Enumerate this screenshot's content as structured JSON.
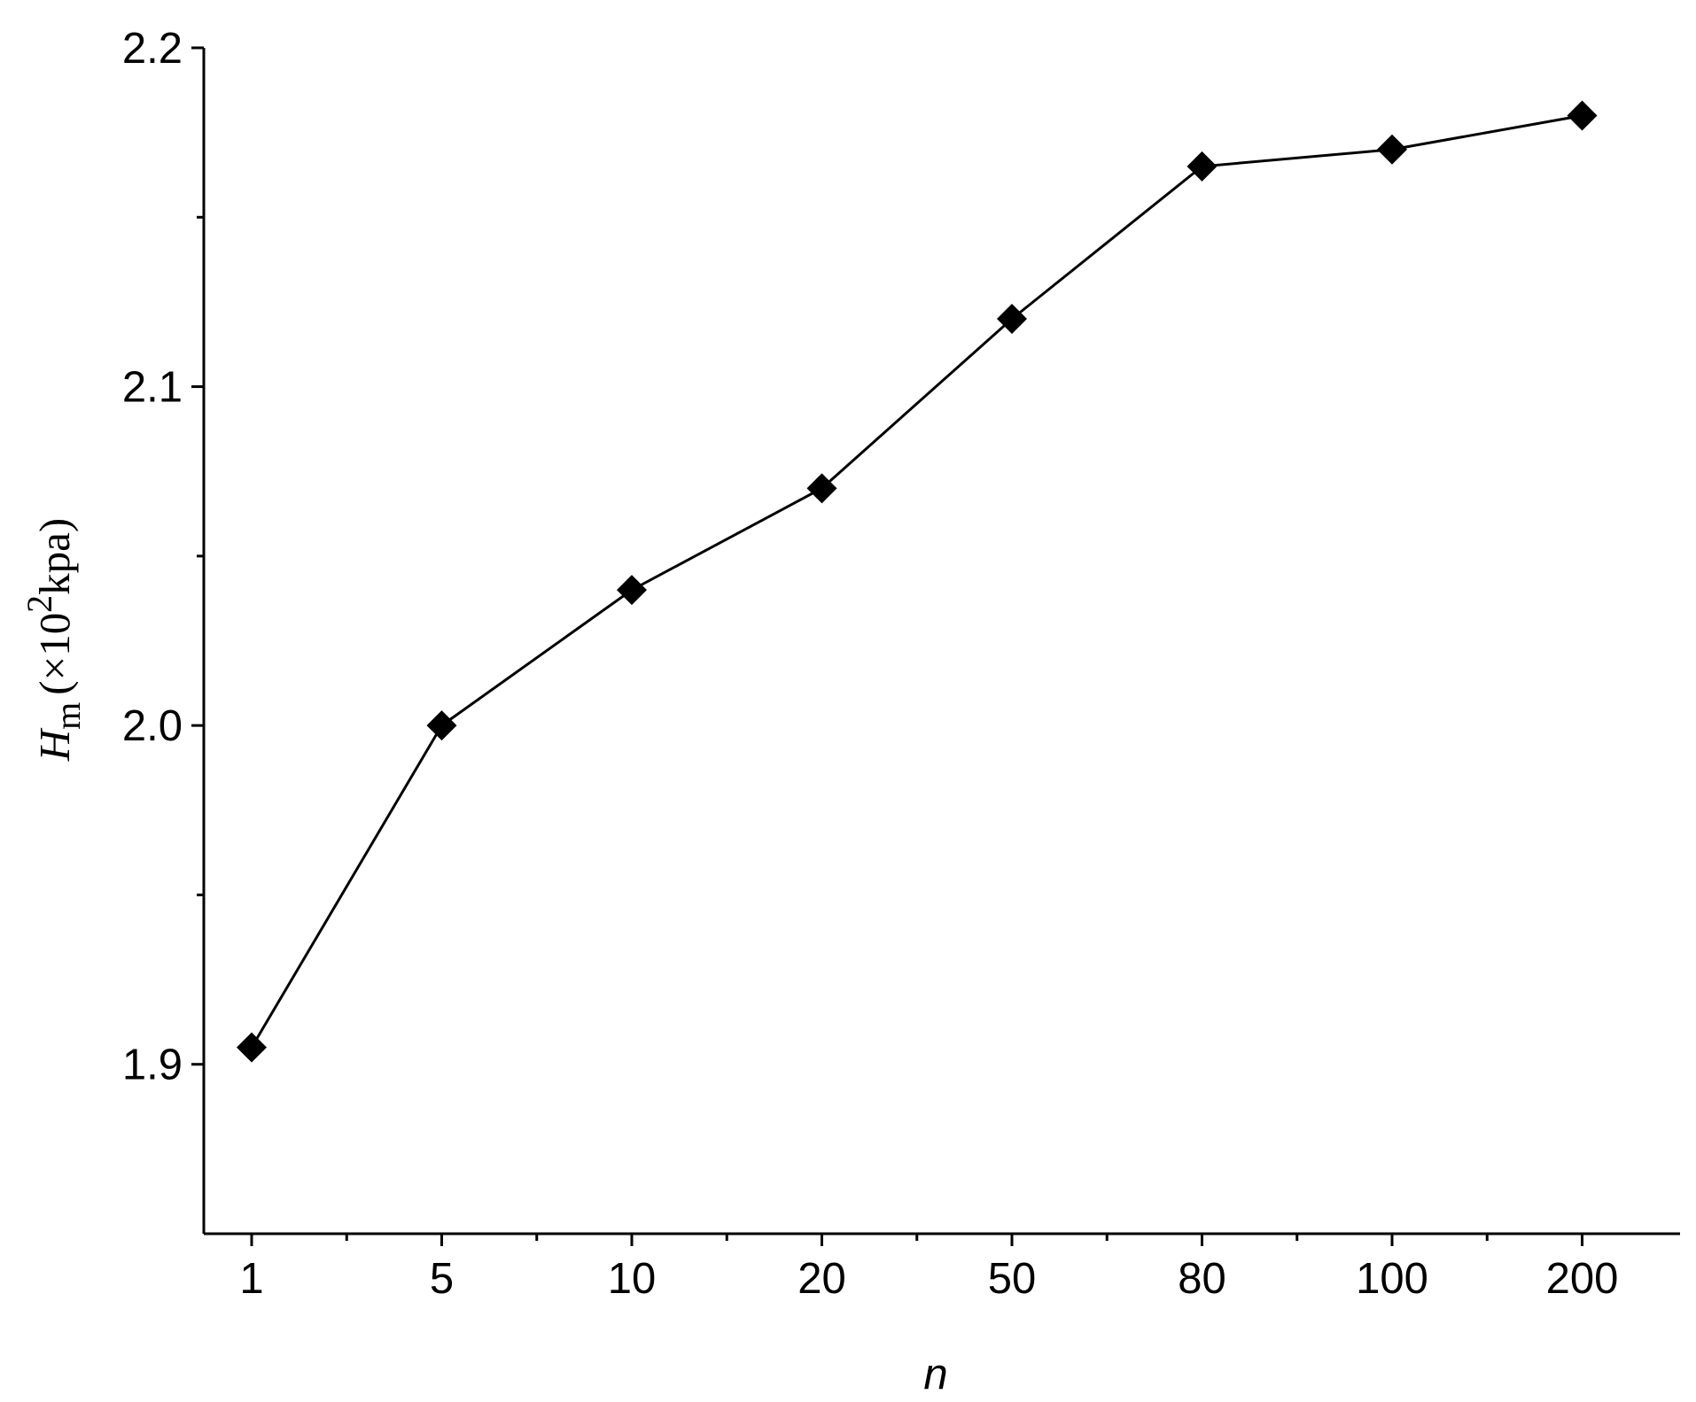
{
  "chart_data": {
    "type": "line",
    "categories": [
      "1",
      "5",
      "10",
      "20",
      "50",
      "80",
      "100",
      "200"
    ],
    "values": [
      1.905,
      2.0,
      2.04,
      2.07,
      2.12,
      2.165,
      2.17,
      2.18
    ],
    "color": "#000000",
    "xlabel": "n",
    "ylabel": {
      "symbol": "H",
      "subscript": "m",
      "unit": "(×10",
      "superscript": "2",
      "unit_tail": "kpa)"
    },
    "ylim": [
      1.85,
      2.2
    ],
    "yticks": [
      {
        "value": 1.9,
        "label": "1.9"
      },
      {
        "value": 2.0,
        "label": "2.0"
      },
      {
        "value": 2.1,
        "label": "2.1"
      },
      {
        "value": 2.2,
        "label": "2.2"
      }
    ],
    "yminorticks": [
      1.95,
      2.05,
      2.15
    ],
    "grid": false,
    "marker": "diamond"
  }
}
